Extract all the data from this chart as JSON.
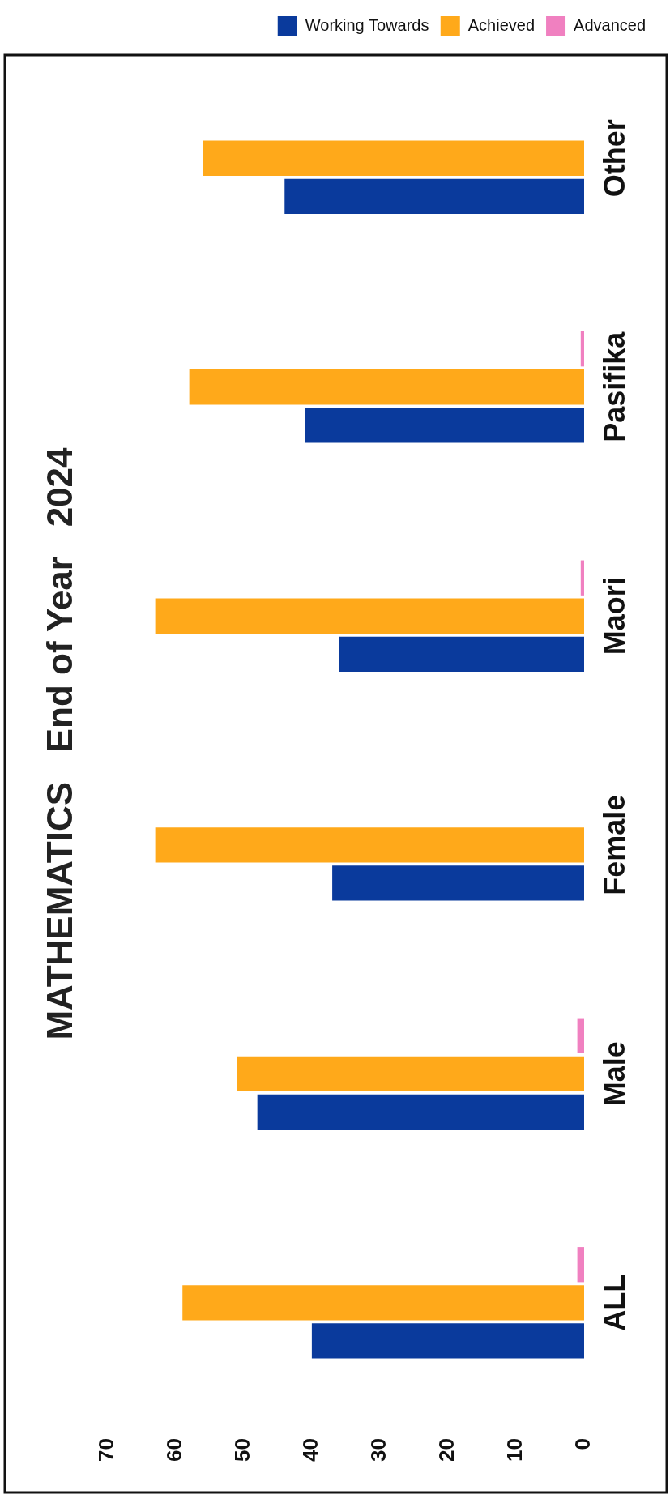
{
  "chart_data": {
    "type": "bar",
    "orientation": "horizontal",
    "title": "MATHEMATICS   End of Year   2024",
    "categories": [
      "Other",
      "Pasifika",
      "Maori",
      "Female",
      "Male",
      "ALL"
    ],
    "series": [
      {
        "name": "Working Towards",
        "color": "#0a3a9c",
        "values": [
          44,
          41,
          36,
          37,
          48,
          40
        ]
      },
      {
        "name": "Achieved",
        "color": "#ffa91a",
        "values": [
          56,
          58,
          63,
          63,
          51,
          59
        ]
      },
      {
        "name": "Advanced",
        "color": "#f080c0",
        "values": [
          0,
          0.5,
          0.5,
          0,
          1,
          1
        ]
      }
    ],
    "xlim": [
      70,
      0
    ],
    "xticks": [
      0,
      10,
      20,
      30,
      40,
      50,
      60,
      70
    ],
    "grid": false,
    "legend": "top right"
  }
}
